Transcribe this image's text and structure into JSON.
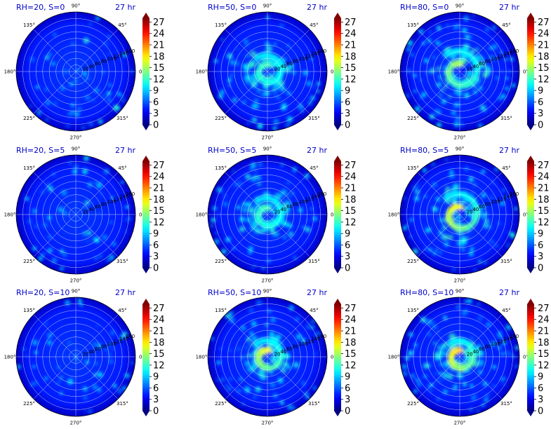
{
  "chart_data": {
    "type": "heatmap",
    "projection": "polar",
    "grid": true,
    "colormap": "jet",
    "colorbar": {
      "ticks": [
        "0",
        "3",
        "6",
        "9",
        "12",
        "15",
        "18",
        "21",
        "24",
        "27"
      ],
      "range": [
        0,
        28
      ],
      "extend": "both"
    },
    "angle_tick_labels": [
      "0°",
      "45°",
      "90°",
      "135°",
      "180°",
      "225°",
      "270°",
      "315°"
    ],
    "radial_tick_labels": [
      "20",
      "40",
      "60",
      "80",
      "100",
      "120",
      "140",
      "160"
    ],
    "radial_range": [
      0,
      180
    ],
    "panels": [
      {
        "title": "RH=20, S=0",
        "time": "27 hr",
        "rh": 20,
        "s": 0,
        "peak_value": 8,
        "core_radius": 0
      },
      {
        "title": "RH=50, S=0",
        "time": "27 hr",
        "rh": 50,
        "s": 0,
        "peak_value": 13,
        "core_radius": 20
      },
      {
        "title": "RH=80, S=0",
        "time": "27 hr",
        "rh": 80,
        "s": 0,
        "peak_value": 16,
        "core_radius": 25
      },
      {
        "title": "RH=20, S=5",
        "time": "27 hr",
        "rh": 20,
        "s": 5,
        "peak_value": 8,
        "core_radius": 0
      },
      {
        "title": "RH=50, S=5",
        "time": "27 hr",
        "rh": 50,
        "s": 5,
        "peak_value": 13,
        "core_radius": 20
      },
      {
        "title": "RH=80, S=5",
        "time": "27 hr",
        "rh": 80,
        "s": 5,
        "peak_value": 20,
        "core_radius": 25
      },
      {
        "title": "RH=20, S=10",
        "time": "27 hr",
        "rh": 20,
        "s": 10,
        "peak_value": 8,
        "core_radius": 0
      },
      {
        "title": "RH=50, S=10",
        "time": "27 hr",
        "rh": 50,
        "s": 10,
        "peak_value": 19,
        "core_radius": 20
      },
      {
        "title": "RH=80, S=10",
        "time": "27 hr",
        "rh": 80,
        "s": 10,
        "peak_value": 22,
        "core_radius": 20
      }
    ]
  }
}
